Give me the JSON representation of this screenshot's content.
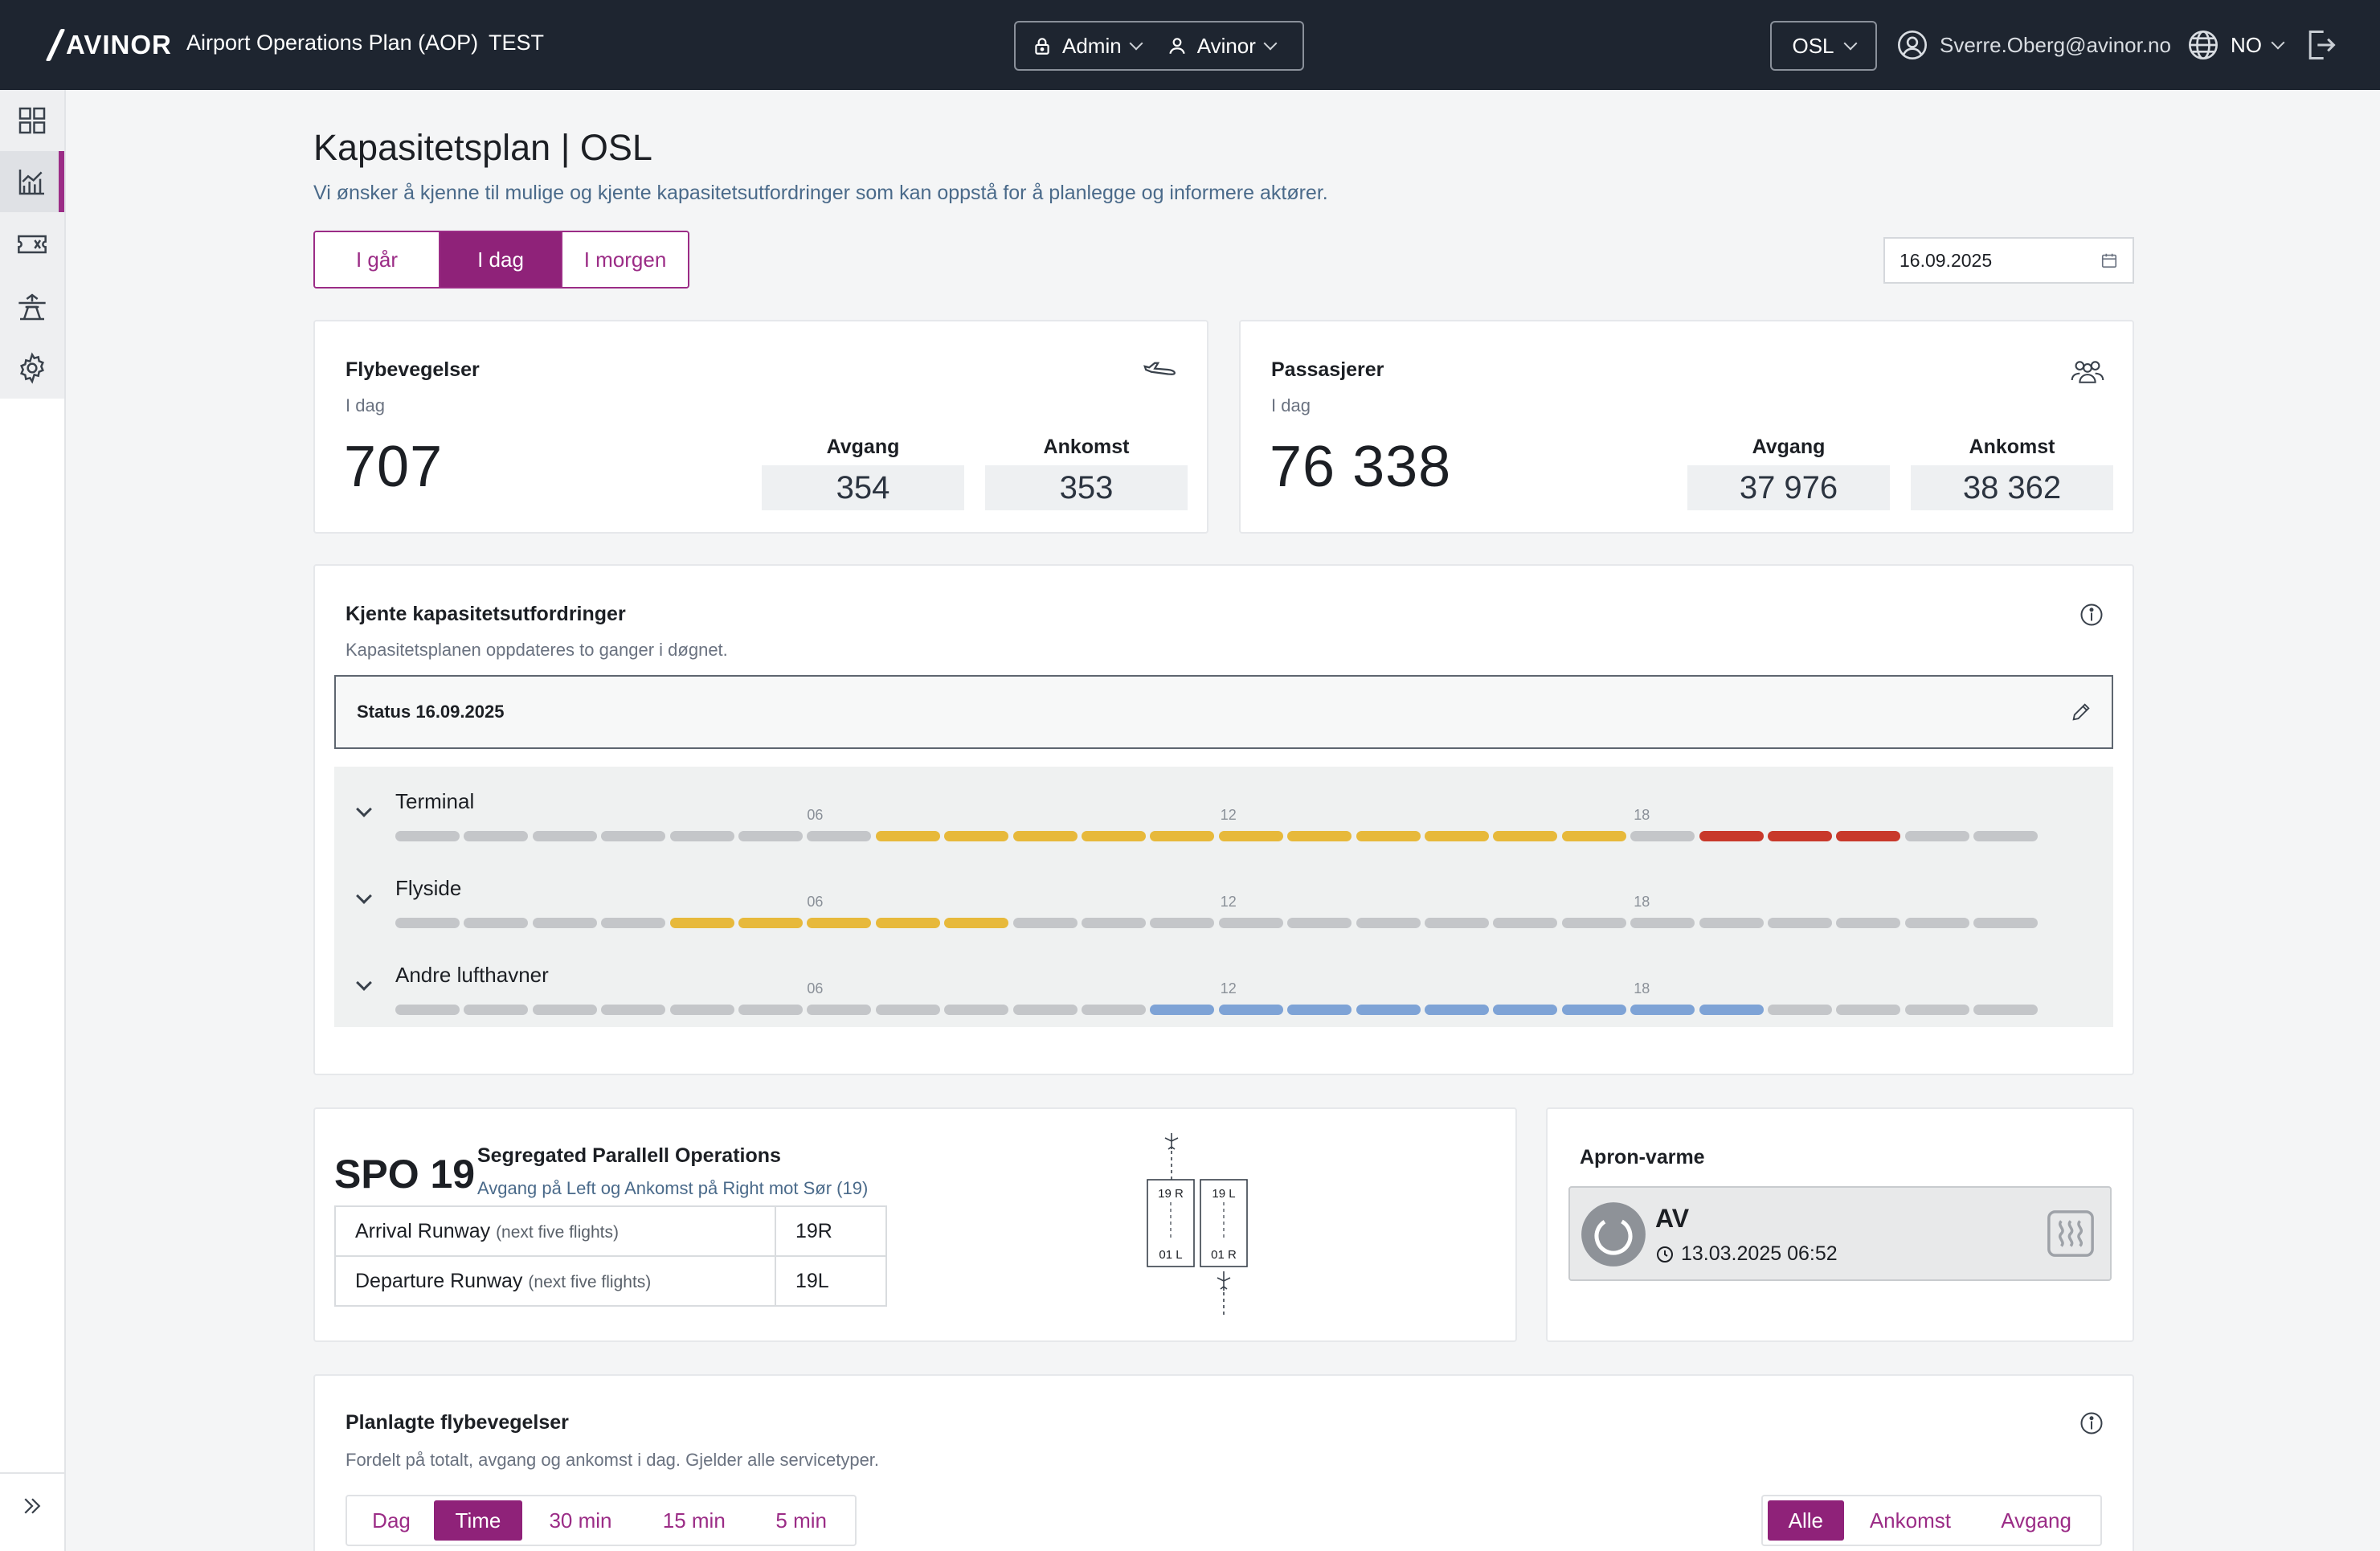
{
  "topbar": {
    "logo": "AVINOR",
    "app_title": "Airport Operations Plan (AOP)",
    "env": "TEST",
    "role": "Admin",
    "org": "Avinor",
    "airport": "OSL",
    "user": "Sverre.Oberg@avinor.no",
    "language": "NO"
  },
  "sidebar": {
    "items": [
      "grid-icon",
      "chart-icon",
      "ticket-icon",
      "tower-icon",
      "gear-icon"
    ],
    "active": "chart-icon"
  },
  "page": {
    "title": "Kapasitetsplan | OSL",
    "description": "Vi ønsker å kjenne til mulige og kjente kapasitetsutfordringer som kan oppstå for å planlegge og informere aktører.",
    "day_tabs": [
      "I går",
      "I dag",
      "I morgen"
    ],
    "selected_day": "I dag",
    "date": "16.09.2025"
  },
  "flights": {
    "title": "Flybevegelser",
    "sub": "I dag",
    "total": "707",
    "dep_label": "Avgang",
    "dep": "354",
    "arr_label": "Ankomst",
    "arr": "353"
  },
  "passengers": {
    "title": "Passasjerer",
    "sub": "I dag",
    "total": "76 338",
    "dep_label": "Avgang",
    "dep": "37 976",
    "arr_label": "Ankomst",
    "arr": "38 362"
  },
  "capacity": {
    "title": "Kjente kapasitetsutfordringer",
    "sub": "Kapasitetsplanen oppdateres to ganger i døgnet.",
    "status": "Status 16.09.2025",
    "hour_marks": [
      "06",
      "12",
      "18"
    ],
    "rows": [
      {
        "label": "Terminal",
        "levels": [
          "none",
          "none",
          "none",
          "none",
          "none",
          "none",
          "none",
          "warn",
          "warn",
          "warn",
          "warn",
          "warn",
          "warn",
          "warn",
          "warn",
          "warn",
          "warn",
          "warn",
          "none",
          "crit",
          "crit",
          "crit",
          "none",
          "none",
          "none"
        ]
      },
      {
        "label": "Flyside",
        "levels": [
          "none",
          "none",
          "none",
          "none",
          "warn",
          "warn",
          "warn",
          "warn",
          "warn",
          "none",
          "none",
          "none",
          "none",
          "none",
          "none",
          "none",
          "none",
          "none",
          "none",
          "none",
          "none",
          "none",
          "none",
          "none",
          "none"
        ]
      },
      {
        "label": "Andre lufthavner",
        "levels": [
          "none",
          "none",
          "none",
          "none",
          "none",
          "none",
          "none",
          "none",
          "none",
          "none",
          "none",
          "info",
          "info",
          "info",
          "info",
          "info",
          "info",
          "info",
          "info",
          "info",
          "none",
          "none",
          "none",
          "none",
          "none"
        ]
      }
    ]
  },
  "spo": {
    "code": "SPO 19",
    "name": "Segregated Parallell Operations",
    "desc": "Avgang på Left og Ankomst på Right mot Sør (19)",
    "rows": [
      {
        "label": "Arrival Runway",
        "hint": "(next five flights)",
        "value": "19R"
      },
      {
        "label": "Departure Runway",
        "hint": "(next five flights)",
        "value": "19L"
      }
    ],
    "runways": {
      "left_top": "19 R",
      "left_bottom": "01 L",
      "right_top": "19 L",
      "right_bottom": "01 R"
    }
  },
  "apron": {
    "title": "Apron-varme",
    "state": "AV",
    "timestamp": "13.03.2025 06:52"
  },
  "planned": {
    "title": "Planlagte flybevegelser",
    "sub": "Fordelt på totalt, avgang og ankomst i dag. Gjelder alle servicetyper.",
    "intervals": [
      "Dag",
      "Time",
      "30 min",
      "15 min",
      "5 min"
    ],
    "selected_interval": "Time",
    "filters": [
      "Alle",
      "Ankomst",
      "Avgang"
    ],
    "selected_filter": "Alle"
  },
  "colors": {
    "accent": "#8f2279",
    "topbar": "#1e2530",
    "warn": "#e7b93b",
    "crit": "#c8392b",
    "info": "#7ea3d6",
    "none": "#c4c6c9"
  }
}
